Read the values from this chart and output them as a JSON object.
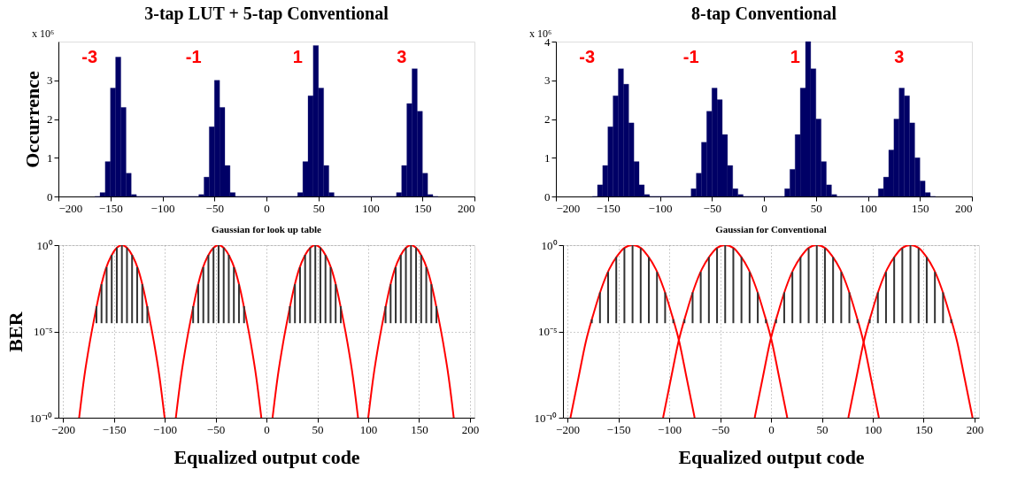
{
  "chart_data": [
    {
      "type": "histogram",
      "title": "3-tap LUT + 5-tap Conventional",
      "ylabel": "Occurrence",
      "color": "#000066",
      "bins": [
        -165,
        -160,
        -155,
        -150,
        -145,
        -140,
        -135,
        -130,
        -125,
        -120,
        -115,
        -110,
        -105,
        -100,
        -95,
        -90,
        -85,
        -80,
        -75,
        -70,
        -65,
        -60,
        -55,
        -50,
        -45,
        -40,
        -35,
        -30,
        -25,
        -20,
        -15,
        -10,
        -5,
        0,
        5,
        10,
        15,
        20,
        25,
        30,
        35,
        40,
        45,
        50,
        55,
        60,
        65,
        70,
        75,
        80,
        85,
        90,
        95,
        100,
        105,
        110,
        115,
        120,
        125,
        130,
        135,
        140,
        145,
        150,
        155,
        160,
        165
      ],
      "values": [
        0,
        0.1,
        0.9,
        2.8,
        3.6,
        2.3,
        0.6,
        0.05,
        0,
        0,
        0,
        0,
        0,
        0,
        0,
        0,
        0,
        0,
        0,
        0,
        0.05,
        0.5,
        1.8,
        3.0,
        2.3,
        0.8,
        0.1,
        0,
        0,
        0,
        0,
        0,
        0,
        0,
        0,
        0,
        0,
        0,
        0,
        0.1,
        0.9,
        2.6,
        3.9,
        2.8,
        0.8,
        0.1,
        0,
        0,
        0,
        0,
        0,
        0,
        0,
        0,
        0,
        0,
        0,
        0,
        0.1,
        0.8,
        2.4,
        3.3,
        2.2,
        0.6,
        0.05,
        0
      ],
      "xlim": [
        -200,
        200
      ],
      "xticks": [
        -200,
        -150,
        -100,
        -50,
        0,
        50,
        100,
        150,
        200
      ],
      "ylim": [
        0,
        4
      ],
      "yticks": [
        0,
        1,
        2,
        3
      ],
      "grid": false,
      "annotations": [
        "x 10⁶",
        "-3",
        "-1",
        "1",
        "3"
      ]
    },
    {
      "type": "histogram",
      "title": "8-tap Conventional",
      "color": "#000066",
      "bins": [
        -165,
        -160,
        -155,
        -150,
        -145,
        -140,
        -135,
        -130,
        -125,
        -120,
        -115,
        -110,
        -105,
        -100,
        -95,
        -90,
        -85,
        -80,
        -75,
        -70,
        -65,
        -60,
        -55,
        -50,
        -45,
        -40,
        -35,
        -30,
        -25,
        -20,
        -15,
        -10,
        -5,
        0,
        5,
        10,
        15,
        20,
        25,
        30,
        35,
        40,
        45,
        50,
        55,
        60,
        65,
        70,
        75,
        80,
        85,
        90,
        95,
        100,
        105,
        110,
        115,
        120,
        125,
        130,
        135,
        140,
        145,
        150,
        155,
        160,
        165
      ],
      "values": [
        0,
        0.3,
        0.8,
        1.8,
        2.6,
        3.3,
        2.9,
        1.9,
        0.9,
        0.3,
        0.05,
        0,
        0,
        0,
        0,
        0,
        0,
        0,
        0,
        0.2,
        0.6,
        1.4,
        2.2,
        2.8,
        2.5,
        1.6,
        0.8,
        0.2,
        0.05,
        0,
        0,
        0,
        0,
        0,
        0,
        0,
        0,
        0.2,
        0.7,
        1.6,
        2.8,
        4.0,
        3.3,
        2.0,
        0.9,
        0.3,
        0.05,
        0,
        0,
        0,
        0,
        0,
        0,
        0,
        0,
        0.2,
        0.5,
        1.2,
        2.0,
        2.8,
        2.6,
        1.9,
        1.0,
        0.4,
        0.1,
        0
      ],
      "xlim": [
        -200,
        200
      ],
      "xticks": [
        -200,
        -150,
        -100,
        -50,
        0,
        50,
        100,
        150,
        200
      ],
      "ylim": [
        0,
        4
      ],
      "yticks": [
        0,
        1,
        2,
        3,
        4
      ],
      "grid": false,
      "annotations": [
        "x 10⁶",
        "-3",
        "-1",
        "1",
        "3"
      ]
    },
    {
      "type": "line",
      "title": "Gaussian for look up table",
      "ylabel": "BER",
      "xlabel": "Equalized output code",
      "log": true,
      "grid": true,
      "xlim": [
        -200,
        200
      ],
      "xticks": [
        -200,
        -150,
        -100,
        -50,
        0,
        50,
        100,
        150,
        200
      ],
      "ylim": [
        1e-10,
        1
      ],
      "yticks": [
        {
          "value": 1e-10,
          "label": "10⁻¹⁰"
        },
        {
          "value": 1e-05,
          "label": "10⁻⁵"
        },
        {
          "value": 1,
          "label": "10⁰"
        }
      ],
      "series": [
        {
          "type": "bar",
          "color": "#333333",
          "x": [
            -167,
            -162,
            -157,
            -152,
            -147,
            -142,
            -137,
            -132,
            -127,
            -122,
            -117,
            -72,
            -67,
            -62,
            -57,
            -52,
            -47,
            -42,
            -37,
            -32,
            -27,
            -22,
            23,
            28,
            33,
            38,
            43,
            48,
            53,
            58,
            63,
            68,
            73,
            117,
            122,
            127,
            132,
            137,
            142,
            147,
            152,
            157,
            162,
            167
          ],
          "values": [
            0.00026,
            0.0054,
            0.053,
            0.27,
            0.72,
            1,
            0.72,
            0.27,
            0.053,
            0.0054,
            0.00026,
            0.00026,
            0.0054,
            0.053,
            0.27,
            0.72,
            1,
            0.72,
            0.27,
            0.053,
            0.0054,
            0.00026,
            0.00026,
            0.0054,
            0.053,
            0.27,
            0.72,
            1,
            0.72,
            0.27,
            0.053,
            0.0054,
            0.00026,
            0.00026,
            0.0054,
            0.053,
            0.27,
            0.72,
            1,
            0.72,
            0.27,
            0.053,
            0.0054,
            0.00026
          ],
          "base": [
            3e-05,
            3e-05,
            3e-05,
            3e-05,
            3e-05,
            3e-05,
            3e-05,
            3e-05,
            3e-05,
            3e-05,
            3e-05,
            3e-05,
            3e-05,
            3e-05,
            3e-05,
            3e-05,
            3e-05,
            3e-05,
            3e-05,
            3e-05,
            3e-05,
            3e-05,
            3e-05,
            3e-05,
            3e-05,
            3e-05,
            3e-05,
            3e-05,
            3e-05,
            3e-05,
            3e-05,
            3e-05,
            3e-05,
            3e-05,
            3e-05,
            3e-05,
            3e-05,
            3e-05,
            3e-05,
            3e-05,
            3e-05,
            3e-05,
            3e-05,
            3e-05
          ]
        },
        {
          "type": "line",
          "color": "#ff0000",
          "x": [
            -184,
            -179,
            -173.5,
            -168,
            -163,
            -158,
            -152.5,
            -147,
            -142,
            -137,
            -131.5,
            -126,
            -121,
            -116,
            -110.5,
            -105,
            -100
          ],
          "values": [
            1e-10,
            2.21e-08,
            2.37e-06,
            0.000124,
            0.00316,
            0.0393,
            0.237,
            0.698,
            1,
            0.698,
            0.237,
            0.0393,
            0.00316,
            0.000124,
            2.37e-06,
            2.21e-08,
            1e-10
          ]
        },
        {
          "type": "line",
          "color": "#ff0000",
          "x": [
            -89,
            -84,
            -78.5,
            -73,
            -68,
            -63,
            -57.5,
            -52,
            -47,
            -42,
            -36.5,
            -31,
            -26,
            -21,
            -15.5,
            -10,
            -5
          ],
          "values": [
            1e-10,
            2.21e-08,
            2.37e-06,
            0.000124,
            0.00316,
            0.0393,
            0.237,
            0.698,
            1,
            0.698,
            0.237,
            0.0393,
            0.00316,
            0.000124,
            2.37e-06,
            2.21e-08,
            1e-10
          ]
        },
        {
          "type": "line",
          "color": "#ff0000",
          "x": [
            6,
            11,
            16.5,
            22,
            27,
            32,
            37.5,
            43,
            48,
            53,
            58.5,
            64,
            69,
            74,
            79.5,
            85,
            90
          ],
          "values": [
            1e-10,
            2.21e-08,
            2.37e-06,
            0.000124,
            0.00316,
            0.0393,
            0.237,
            0.698,
            1,
            0.698,
            0.237,
            0.0393,
            0.00316,
            0.000124,
            2.37e-06,
            2.21e-08,
            1e-10
          ]
        },
        {
          "type": "line",
          "color": "#ff0000",
          "x": [
            100,
            105,
            110.5,
            116,
            121,
            126,
            131.5,
            137,
            142,
            147,
            152.5,
            158,
            163,
            168,
            173.5,
            179,
            184
          ],
          "values": [
            1e-10,
            2.21e-08,
            2.37e-06,
            0.000124,
            0.00316,
            0.0393,
            0.237,
            0.698,
            1,
            0.698,
            0.237,
            0.0393,
            0.00316,
            0.000124,
            2.37e-06,
            2.21e-08,
            1e-10
          ]
        }
      ]
    },
    {
      "type": "line",
      "title": "Gaussian for Conventional",
      "xlabel": "Equalized output code",
      "log": true,
      "grid": true,
      "xlim": [
        -200,
        200
      ],
      "xticks": [
        -200,
        -150,
        -100,
        -50,
        0,
        50,
        100,
        150,
        200
      ],
      "ylim": [
        1e-10,
        1
      ],
      "yticks": [
        {
          "value": 1e-10,
          "label": "10⁻¹⁰"
        },
        {
          "value": 1e-05,
          "label": "10⁻⁵"
        },
        {
          "value": 1,
          "label": "10⁰"
        }
      ],
      "series": [
        {
          "type": "bar",
          "color": "#333333",
          "x": [
            -176,
            -168,
            -160,
            -152,
            -144,
            -136,
            -128,
            -120,
            -112,
            -104,
            -96,
            -85,
            -77,
            -69,
            -61,
            -53,
            -45,
            -37,
            -29,
            -21,
            -13,
            -5,
            5,
            13,
            21,
            29,
            37,
            45,
            53,
            61,
            69,
            77,
            85,
            97,
            105,
            113,
            121,
            129,
            137,
            145,
            153,
            161,
            169,
            177
          ],
          "values": [
            2e-05,
            0.0018,
            0.028,
            0.205,
            0.67,
            1,
            0.67,
            0.205,
            0.028,
            0.0018,
            2e-05,
            2e-05,
            0.0018,
            0.028,
            0.205,
            0.67,
            1,
            0.67,
            0.205,
            0.028,
            0.0018,
            2e-05,
            2e-05,
            0.0018,
            0.028,
            0.205,
            0.67,
            1,
            0.67,
            0.205,
            0.028,
            0.0018,
            2e-05,
            2e-05,
            0.0018,
            0.028,
            0.205,
            0.67,
            1,
            0.67,
            0.205,
            0.028,
            0.0018,
            2e-05
          ],
          "base": [
            3e-05,
            3e-05,
            3e-05,
            3e-05,
            3e-05,
            3e-05,
            3e-05,
            3e-05,
            3e-05,
            3e-05,
            3e-05,
            3e-05,
            3e-05,
            3e-05,
            3e-05,
            3e-05,
            3e-05,
            3e-05,
            3e-05,
            3e-05,
            3e-05,
            3e-05,
            3e-05,
            3e-05,
            3e-05,
            3e-05,
            3e-05,
            3e-05,
            3e-05,
            3e-05,
            3e-05,
            3e-05,
            3e-05,
            3e-05,
            3e-05,
            3e-05,
            3e-05,
            3e-05,
            3e-05,
            3e-05,
            3e-05,
            3e-05,
            3e-05,
            3e-05
          ]
        },
        {
          "type": "line",
          "color": "#ff0000",
          "x": [
            -197,
            -189,
            -182,
            -174,
            -166.5,
            -159,
            -151,
            -144,
            -136,
            -128,
            -121,
            -113,
            -105.5,
            -98,
            -90,
            -83,
            -75
          ],
          "values": [
            1e-10,
            2.21e-08,
            2.37e-06,
            0.000124,
            0.00316,
            0.0393,
            0.237,
            0.698,
            1,
            0.698,
            0.237,
            0.0393,
            0.00316,
            0.000124,
            2.37e-06,
            2.21e-08,
            1e-10
          ]
        },
        {
          "type": "line",
          "color": "#ff0000",
          "x": [
            -106,
            -98,
            -91,
            -83,
            -75.5,
            -68,
            -60,
            -53,
            -45,
            -37,
            -30,
            -22,
            -14.5,
            -7,
            1,
            8,
            16
          ],
          "values": [
            1e-10,
            2.21e-08,
            2.37e-06,
            0.000124,
            0.00316,
            0.0393,
            0.237,
            0.698,
            1,
            0.698,
            0.237,
            0.0393,
            0.00316,
            0.000124,
            2.37e-06,
            2.21e-08,
            1e-10
          ]
        },
        {
          "type": "line",
          "color": "#ff0000",
          "x": [
            -16,
            -8,
            -1,
            7,
            14.5,
            22,
            30,
            37,
            45,
            53,
            60,
            68,
            75.5,
            83,
            91,
            98,
            106
          ],
          "values": [
            1e-10,
            2.21e-08,
            2.37e-06,
            0.000124,
            0.00316,
            0.0393,
            0.237,
            0.698,
            1,
            0.698,
            0.237,
            0.0393,
            0.00316,
            0.000124,
            2.37e-06,
            2.21e-08,
            1e-10
          ]
        },
        {
          "type": "line",
          "color": "#ff0000",
          "x": [
            76,
            84,
            91,
            99,
            106.5,
            114,
            122,
            129,
            137,
            145,
            152,
            160,
            167.5,
            175,
            183,
            190,
            198
          ],
          "values": [
            1e-10,
            2.21e-08,
            2.37e-06,
            0.000124,
            0.00316,
            0.0393,
            0.237,
            0.698,
            1,
            0.698,
            0.237,
            0.0393,
            0.00316,
            0.000124,
            2.37e-06,
            2.21e-08,
            1e-10
          ]
        }
      ]
    }
  ]
}
